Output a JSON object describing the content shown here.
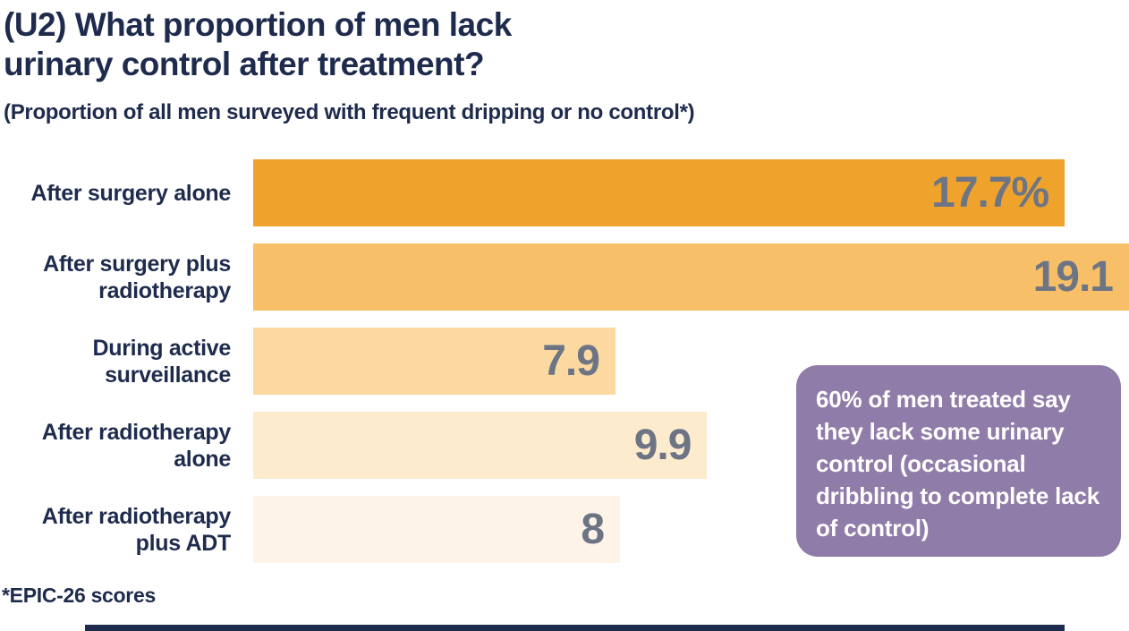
{
  "title": "(U2) What proportion of men lack\nurinary control after treatment?",
  "subtitle": "(Proportion of all men surveyed with frequent dripping or no control*)",
  "footnote": "*EPIC-26 scores",
  "callout": {
    "text": "60% of men treated say they lack some urinary control (occasional dribbling to complete lack of control)",
    "bg_color": "#8f7ca8",
    "text_color": "#ffffff"
  },
  "colors": {
    "heading_navy": "#1e2b4d",
    "value_slate": "#6d7585",
    "background": "#ffffff",
    "bottom_accent": "#1e2b4d"
  },
  "chart_data": {
    "type": "bar",
    "orientation": "horizontal",
    "title": "(U2) What proportion of men lack urinary control after treatment?",
    "subtitle": "(Proportion of all men surveyed with frequent dripping or no control*)",
    "categories": [
      "After surgery alone",
      "After surgery plus radiotherapy",
      "During active surveillance",
      "After radiotherapy alone",
      "After radiotherapy plus ADT"
    ],
    "category_display_lines": [
      "After surgery alone",
      "After surgery plus\nradiotherapy",
      "During active\nsurveillance",
      "After radiotherapy\nalone",
      "After radiotherapy\nplus ADT"
    ],
    "values": [
      17.7,
      19.1,
      7.9,
      9.9,
      8
    ],
    "value_labels": [
      "17.7%",
      "19.1",
      "7.9",
      "9.9",
      "8"
    ],
    "bar_colors": [
      "#efa32c",
      "#f7c068",
      "#fbd9a1",
      "#fdebcd",
      "#fdf3e7"
    ],
    "xlim": [
      0,
      19.1
    ],
    "grid": false,
    "legend": false,
    "annotation": "60% of men treated say they lack some urinary control (occasional dribbling to complete lack of control)"
  }
}
